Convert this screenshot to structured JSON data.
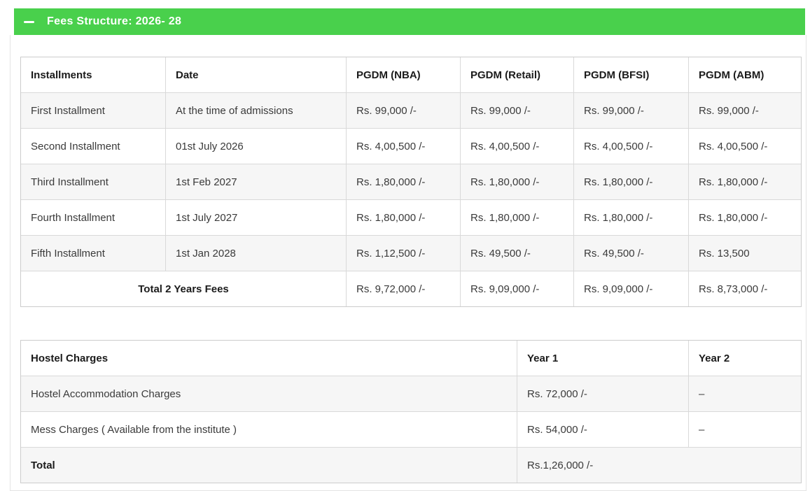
{
  "accent_green": "#49d04c",
  "accordion": {
    "title": "Fees Structure: 2026- 28"
  },
  "fees_table": {
    "columns": [
      "Installments",
      "Date",
      "PGDM (NBA)",
      "PGDM (Retail)",
      "PGDM (BFSI)",
      "PGDM (ABM)"
    ],
    "rows": [
      {
        "installment": "First Installment",
        "date": "At the time of admissions",
        "nba": "Rs. 99,000 /-",
        "retail": "Rs. 99,000 /-",
        "bfsi": "Rs. 99,000 /-",
        "abm": "Rs. 99,000 /-"
      },
      {
        "installment": "Second Installment",
        "date": "01st July 2026",
        "nba": "Rs. 4,00,500 /-",
        "retail": "Rs. 4,00,500 /-",
        "bfsi": "Rs. 4,00,500 /-",
        "abm": "Rs. 4,00,500 /-"
      },
      {
        "installment": "Third Installment",
        "date": "1st Feb 2027",
        "nba": "Rs. 1,80,000 /-",
        "retail": "Rs. 1,80,000 /-",
        "bfsi": "Rs. 1,80,000 /-",
        "abm": "Rs. 1,80,000 /-"
      },
      {
        "installment": "Fourth Installment",
        "date": "1st July 2027",
        "nba": "Rs. 1,80,000 /-",
        "retail": "Rs. 1,80,000 /-",
        "bfsi": "Rs. 1,80,000 /-",
        "abm": "Rs. 1,80,000 /-"
      },
      {
        "installment": "Fifth Installment",
        "date": "1st Jan 2028",
        "nba": "Rs. 1,12,500 /-",
        "retail": "Rs. 49,500 /-",
        "bfsi": "Rs. 49,500 /-",
        "abm": "Rs. 13,500"
      }
    ],
    "total_row": {
      "label": "Total 2 Years Fees",
      "nba": "Rs. 9,72,000 /-",
      "retail": "Rs. 9,09,000 /-",
      "bfsi": "Rs. 9,09,000 /-",
      "abm": "Rs. 8,73,000 /-"
    }
  },
  "hostel_table": {
    "columns": [
      "Hostel Charges",
      "Year 1",
      "Year 2"
    ],
    "rows": [
      {
        "label": "Hostel Accommodation Charges",
        "year1": "Rs. 72,000 /-",
        "year2": "–"
      },
      {
        "label": "Mess Charges ( Available from the institute )",
        "year1": "Rs. 54,000 /-",
        "year2": "–"
      }
    ],
    "total_row": {
      "label": "Total",
      "value": "Rs.1,26,000 /-"
    }
  }
}
